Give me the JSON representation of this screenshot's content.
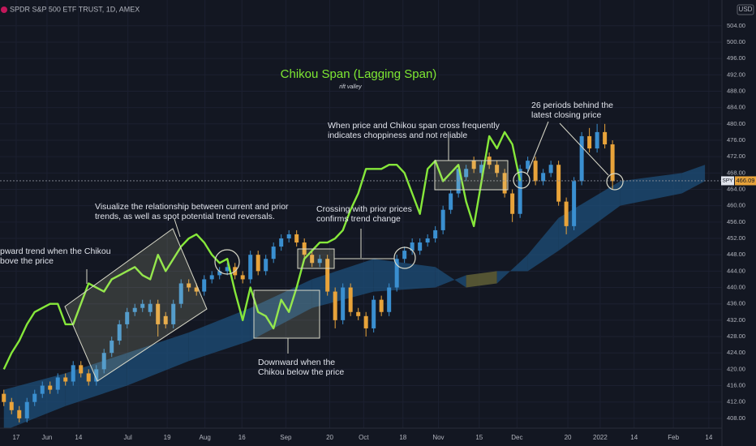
{
  "chart_data": {
    "type": "candlestick",
    "title": "SPDR S&P 500 ETF TRUST, 1D, AMEX",
    "heading": "Chikou Span (Lagging Span)",
    "subheading": "rift valley",
    "currency": "USD",
    "symbol": "SPY",
    "last_price": 466.09,
    "up_color": "#3a8fd0",
    "down_color": "#e8a33a",
    "open": [
      414,
      412,
      410,
      408,
      412,
      414,
      416,
      415,
      418,
      417,
      421,
      419,
      417,
      420,
      424,
      427,
      431,
      434,
      435,
      434,
      436,
      433,
      431,
      436,
      441,
      440,
      439,
      442,
      443,
      444,
      445,
      443,
      442,
      448,
      444,
      447,
      450,
      452,
      453,
      451,
      448,
      446,
      447,
      439,
      432,
      440,
      434,
      433,
      430,
      437,
      434,
      440,
      447,
      449,
      449,
      451,
      452,
      454,
      459,
      463,
      467,
      471,
      468,
      472,
      470,
      468,
      463,
      458,
      469,
      471,
      466,
      468,
      470,
      461,
      455,
      466,
      477,
      474,
      478,
      475
    ],
    "high": [
      415,
      413,
      411,
      413,
      415,
      417,
      417,
      419,
      419,
      422,
      422,
      420,
      421,
      425,
      428,
      432,
      435,
      436,
      437,
      437,
      437,
      434,
      437,
      442,
      442,
      441,
      443,
      444,
      445,
      446,
      446,
      444,
      449,
      449,
      448,
      451,
      453,
      454,
      454,
      452,
      449,
      448,
      448,
      440,
      441,
      441,
      435,
      434,
      438,
      438,
      441,
      448,
      450,
      452,
      452,
      453,
      455,
      460,
      464,
      470,
      470,
      472,
      471,
      473,
      471,
      469,
      464,
      470,
      472,
      472,
      469,
      471,
      471,
      462,
      467,
      478,
      479,
      480,
      480,
      476
    ],
    "low": [
      411,
      409,
      407,
      407,
      411,
      413,
      414,
      414,
      416,
      416,
      418,
      416,
      416,
      419,
      423,
      426,
      430,
      433,
      434,
      433,
      428,
      430,
      430,
      435,
      439,
      438,
      438,
      441,
      442,
      443,
      442,
      441,
      441,
      443,
      443,
      446,
      449,
      451,
      450,
      447,
      445,
      445,
      438,
      430,
      431,
      433,
      432,
      428,
      429,
      433,
      433,
      439,
      446,
      448,
      448,
      450,
      451,
      453,
      458,
      462,
      466,
      468,
      467,
      469,
      467,
      462,
      456,
      457,
      468,
      465,
      465,
      467,
      460,
      453,
      454,
      465,
      473,
      473,
      474,
      464
    ],
    "close": [
      412,
      410,
      408,
      412,
      414,
      416,
      415,
      418,
      417,
      421,
      419,
      417,
      420,
      424,
      427,
      431,
      434,
      435,
      436,
      436,
      431,
      431,
      436,
      441,
      440,
      439,
      442,
      443,
      444,
      445,
      443,
      442,
      448,
      444,
      447,
      450,
      452,
      453,
      451,
      448,
      446,
      447,
      439,
      432,
      440,
      434,
      433,
      430,
      437,
      434,
      440,
      447,
      449,
      451,
      451,
      452,
      454,
      459,
      463,
      469,
      469,
      469,
      470,
      470,
      468,
      463,
      458,
      469,
      471,
      466,
      468,
      470,
      461,
      455,
      466,
      477,
      474,
      478,
      475,
      466
    ],
    "chikou": {
      "color": "#86e83a",
      "values": [
        420,
        424,
        427,
        431,
        434,
        435,
        436,
        436,
        431,
        431,
        436,
        441,
        440,
        439,
        442,
        443,
        444,
        445,
        443,
        442,
        448,
        444,
        447,
        450,
        452,
        453,
        451,
        448,
        446,
        447,
        439,
        432,
        440,
        434,
        433,
        430,
        437,
        434,
        440,
        447,
        449,
        451,
        451,
        452,
        454,
        459,
        463,
        469,
        469,
        469,
        470,
        470,
        468,
        463,
        458,
        469,
        471,
        466,
        468,
        470,
        461,
        455,
        466,
        477,
        474,
        478,
        475,
        466,
        null,
        null,
        null,
        null,
        null,
        null,
        null,
        null,
        null,
        null,
        null,
        null
      ]
    },
    "cloud": {
      "bull_color": "#1d4f7a",
      "bear_color": "#6b6a3a",
      "x": [
        0,
        8,
        16,
        24,
        32,
        40,
        48,
        56,
        60,
        64,
        68,
        72,
        80,
        88,
        91
      ],
      "span_a": [
        415,
        419,
        424,
        429,
        435,
        442,
        447,
        445,
        440,
        441,
        448,
        457,
        466,
        468,
        470
      ],
      "span_b": [
        405,
        411,
        416,
        422,
        427,
        435,
        439,
        440,
        443,
        444,
        444,
        449,
        460,
        463,
        466
      ]
    },
    "xlim": [
      -0.5,
      93.2
    ],
    "xticks": [
      {
        "value": 1.6,
        "label": "17"
      },
      {
        "value": 5.6,
        "label": "Jun"
      },
      {
        "value": 9.7,
        "label": "14"
      },
      {
        "value": 16.1,
        "label": "Jul"
      },
      {
        "value": 21.2,
        "label": "19"
      },
      {
        "value": 26.1,
        "label": "Aug"
      },
      {
        "value": 30.9,
        "label": "16"
      },
      {
        "value": 36.6,
        "label": "Sep"
      },
      {
        "value": 42.3,
        "label": "20"
      },
      {
        "value": 46.7,
        "label": "Oct"
      },
      {
        "value": 51.8,
        "label": "18"
      },
      {
        "value": 56.4,
        "label": "Nov"
      },
      {
        "value": 61.7,
        "label": "15"
      },
      {
        "value": 66.6,
        "label": "Dec"
      },
      {
        "value": 73.2,
        "label": "20"
      },
      {
        "value": 77.4,
        "label": "2022"
      },
      {
        "value": 81.8,
        "label": "14"
      },
      {
        "value": 86.9,
        "label": "Feb"
      },
      {
        "value": 91.5,
        "label": "14"
      }
    ],
    "ylim": [
      405.6,
      510.3
    ],
    "yticks": [
      {
        "value": 408,
        "label": "408.00"
      },
      {
        "value": 412,
        "label": "412.00"
      },
      {
        "value": 416,
        "label": "416.00"
      },
      {
        "value": 420,
        "label": "420.00"
      },
      {
        "value": 424,
        "label": "424.00"
      },
      {
        "value": 428,
        "label": "428.00"
      },
      {
        "value": 432,
        "label": "432.00"
      },
      {
        "value": 436,
        "label": "436.00"
      },
      {
        "value": 440,
        "label": "440.00"
      },
      {
        "value": 444,
        "label": "444.00"
      },
      {
        "value": 448,
        "label": "448.00"
      },
      {
        "value": 452,
        "label": "452.00"
      },
      {
        "value": 456,
        "label": "456.00"
      },
      {
        "value": 460,
        "label": "460.00"
      },
      {
        "value": 464,
        "label": "464.00"
      },
      {
        "value": 468,
        "label": "468.00"
      },
      {
        "value": 472,
        "label": "472.00"
      },
      {
        "value": 476,
        "label": "476.00"
      },
      {
        "value": 480,
        "label": "480.00"
      },
      {
        "value": 484,
        "label": "484.00"
      },
      {
        "value": 488,
        "label": "488.00"
      },
      {
        "value": 492,
        "label": "492.00"
      },
      {
        "value": 496,
        "label": "496.00"
      },
      {
        "value": 500,
        "label": "500.00"
      },
      {
        "value": 504,
        "label": "504.00"
      }
    ],
    "grid": true,
    "annotations": [
      [
        "pward trend when the Chikou",
        "bove the price"
      ],
      [
        "Visualize the relationship between current and prior",
        "trends, as well as spot potential trend reversals."
      ],
      [
        "Crossing with prior prices",
        "confirms trend change"
      ],
      [
        "When price and Chikou span cross frequently",
        "indicates choppiness and not reliable"
      ],
      [
        "26 periods behind the",
        "latest closing price"
      ],
      [
        "Downward when the",
        "Chikou below the price"
      ]
    ]
  }
}
